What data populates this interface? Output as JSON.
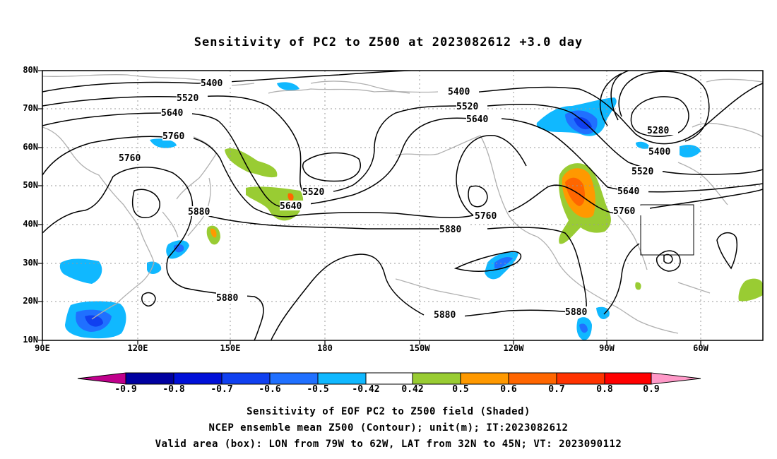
{
  "title": "Sensitivity of PC2 to Z500 at 2023082612 +3.0 day",
  "lat_labels": [
    "80N",
    "70N",
    "60N",
    "50N",
    "40N",
    "30N",
    "20N",
    "10N"
  ],
  "lon_labels": [
    "90E",
    "120E",
    "150E",
    "180",
    "150W",
    "120W",
    "90W",
    "60W"
  ],
  "contour_labels": [
    "5400",
    "5520",
    "5640",
    "5760",
    "5880",
    "5280"
  ],
  "colorbar": {
    "labels": [
      "-0.9",
      "-0.8",
      "-0.7",
      "-0.6",
      "-0.5",
      "-0.42",
      "0.42",
      "0.5",
      "0.6",
      "0.7",
      "0.8",
      "0.9"
    ],
    "colors": [
      "#c0008c",
      "#0000a0",
      "#0010d8",
      "#1040f0",
      "#2070ff",
      "#10b8ff",
      "#ffffff",
      "#99cc33",
      "#ff9900",
      "#ff6600",
      "#ff3300",
      "#ff0000",
      "#ff99c8"
    ]
  },
  "captions": [
    "Sensitivity of EOF PC2 to Z500 field (Shaded)",
    "NCEP ensemble mean Z500 (Contour); unit(m); IT:2023082612",
    "Valid area (box): LON from 79W to 62W, LAT from 32N to 45N; VT: 2023090112"
  ],
  "colors": {
    "contour": "#000000",
    "coast": "#b0b0b0",
    "grid": "#999999"
  }
}
